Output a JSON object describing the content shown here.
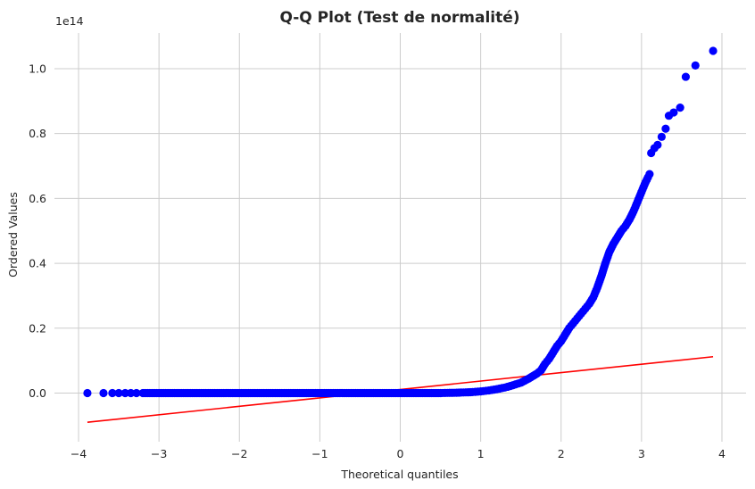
{
  "chart_data": {
    "type": "scatter",
    "title": "Q-Q Plot (Test de normalité)",
    "xlabel": "Theoretical quantiles",
    "ylabel": "Ordered Values",
    "offset_text": "1e14",
    "xlim": [
      -4.3,
      4.3
    ],
    "ylim": [
      -1.5,
      11.1
    ],
    "y_unit_scale": 100000000000000.0,
    "grid": true,
    "legend": "none",
    "x_ticks": [
      -4,
      -3,
      -2,
      -1,
      0,
      1,
      2,
      3,
      4
    ],
    "x_tick_labels": [
      "−4",
      "−3",
      "−2",
      "−1",
      "0",
      "1",
      "2",
      "3",
      "4"
    ],
    "y_ticks": [
      0,
      2,
      4,
      6,
      8,
      10
    ],
    "y_tick_labels": [
      "0.0",
      "0.2",
      "0.4",
      "0.6",
      "0.8",
      "1.0"
    ],
    "colors": {
      "points": "#0000ff",
      "fit_line": "#ff0000",
      "grid": "#cccccc",
      "background": "#ffffff"
    },
    "series": [
      {
        "kind": "points",
        "points_y_units_1e13": [
          [
            -3.89,
            0.0
          ],
          [
            -3.69,
            0.0
          ],
          [
            -3.58,
            0.0
          ],
          [
            -3.5,
            0.0
          ],
          [
            -3.42,
            0.0
          ],
          [
            -3.35,
            0.0
          ],
          [
            -3.28,
            0.0
          ],
          [
            -3.2,
            0.0
          ],
          [
            -3.0,
            0.0
          ],
          [
            -2.5,
            0.0
          ],
          [
            -2.0,
            0.0
          ],
          [
            -1.5,
            0.0
          ],
          [
            -1.0,
            0.0
          ],
          [
            -0.5,
            0.0
          ],
          [
            0.0,
            0.0
          ],
          [
            0.5,
            0.0
          ],
          [
            0.7,
            0.01
          ],
          [
            0.9,
            0.03
          ],
          [
            1.0,
            0.05
          ],
          [
            1.1,
            0.08
          ],
          [
            1.2,
            0.12
          ],
          [
            1.3,
            0.17
          ],
          [
            1.4,
            0.24
          ],
          [
            1.5,
            0.32
          ],
          [
            1.6,
            0.45
          ],
          [
            1.7,
            0.6
          ],
          [
            1.75,
            0.7
          ],
          [
            1.8,
            0.9
          ],
          [
            1.85,
            1.05
          ],
          [
            1.9,
            1.25
          ],
          [
            1.95,
            1.45
          ],
          [
            2.0,
            1.6
          ],
          [
            2.05,
            1.8
          ],
          [
            2.1,
            2.0
          ],
          [
            2.15,
            2.15
          ],
          [
            2.2,
            2.3
          ],
          [
            2.25,
            2.45
          ],
          [
            2.3,
            2.6
          ],
          [
            2.35,
            2.75
          ],
          [
            2.4,
            2.95
          ],
          [
            2.45,
            3.25
          ],
          [
            2.5,
            3.6
          ],
          [
            2.55,
            4.0
          ],
          [
            2.6,
            4.35
          ],
          [
            2.65,
            4.6
          ],
          [
            2.7,
            4.8
          ],
          [
            2.75,
            5.0
          ],
          [
            2.8,
            5.15
          ],
          [
            2.85,
            5.35
          ],
          [
            2.9,
            5.6
          ],
          [
            2.95,
            5.9
          ],
          [
            3.0,
            6.2
          ],
          [
            3.05,
            6.5
          ],
          [
            3.08,
            6.65
          ],
          [
            3.1,
            6.75
          ],
          [
            3.12,
            7.4
          ],
          [
            3.16,
            7.55
          ],
          [
            3.2,
            7.65
          ],
          [
            3.25,
            7.9
          ],
          [
            3.3,
            8.15
          ],
          [
            3.34,
            8.55
          ],
          [
            3.4,
            8.65
          ],
          [
            3.48,
            8.8
          ],
          [
            3.55,
            9.75
          ],
          [
            3.67,
            10.1
          ],
          [
            3.89,
            10.55
          ]
        ]
      },
      {
        "kind": "fit_line",
        "from": [
          -3.89,
          -0.9
        ],
        "to": [
          3.89,
          1.12
        ]
      }
    ]
  }
}
